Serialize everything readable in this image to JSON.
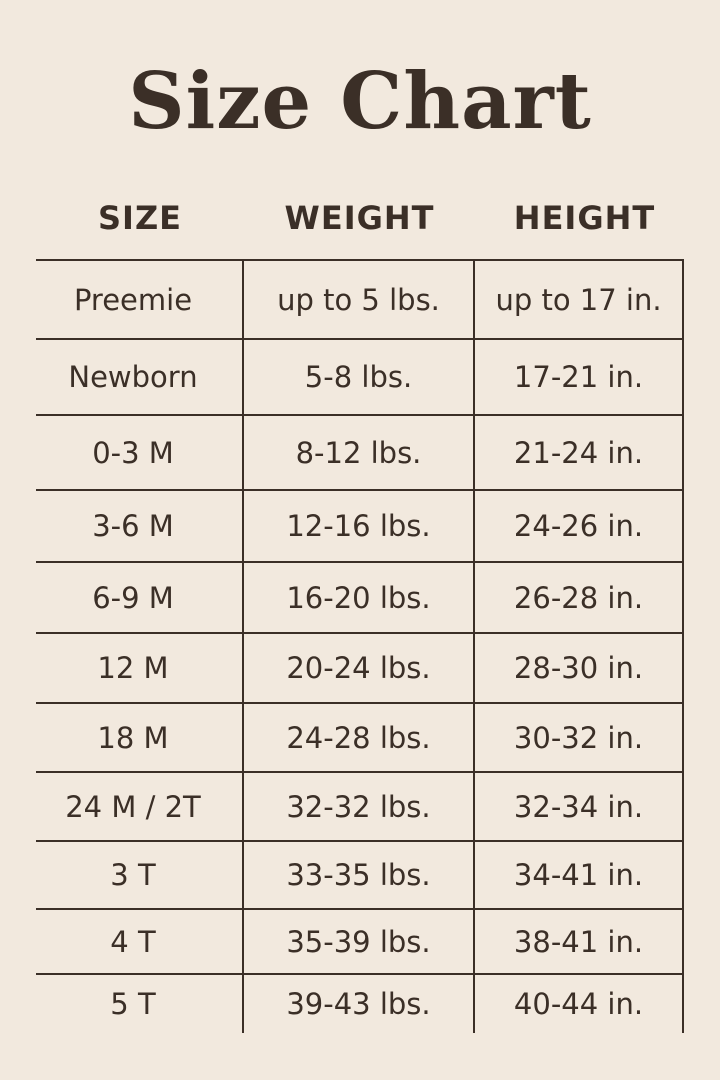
{
  "title": "Size Chart",
  "columns": [
    "SIZE",
    "WEIGHT",
    "HEIGHT"
  ],
  "rows": [
    [
      "Preemie",
      "up to 5 lbs.",
      "up to 17 in."
    ],
    [
      "Newborn",
      "5-8 lbs.",
      "17-21 in."
    ],
    [
      "0-3 M",
      "8-12 lbs.",
      "21-24 in."
    ],
    [
      "3-6 M",
      "12-16 lbs.",
      "24-26 in."
    ],
    [
      "6-9 M",
      "16-20 lbs.",
      "26-28 in."
    ],
    [
      "12 M",
      "20-24 lbs.",
      "28-30 in."
    ],
    [
      "18 M",
      "24-28 lbs.",
      "30-32 in."
    ],
    [
      "24 M / 2T",
      "32-32 lbs.",
      "32-34 in."
    ],
    [
      "3 T",
      "33-35 lbs.",
      "34-41 in."
    ],
    [
      "4 T",
      "35-39 lbs.",
      "38-41 in."
    ],
    [
      "5 T",
      "39-43 lbs.",
      "40-44 in."
    ]
  ],
  "colors": {
    "background": "#f2e9de",
    "text": "#3b2f27"
  }
}
